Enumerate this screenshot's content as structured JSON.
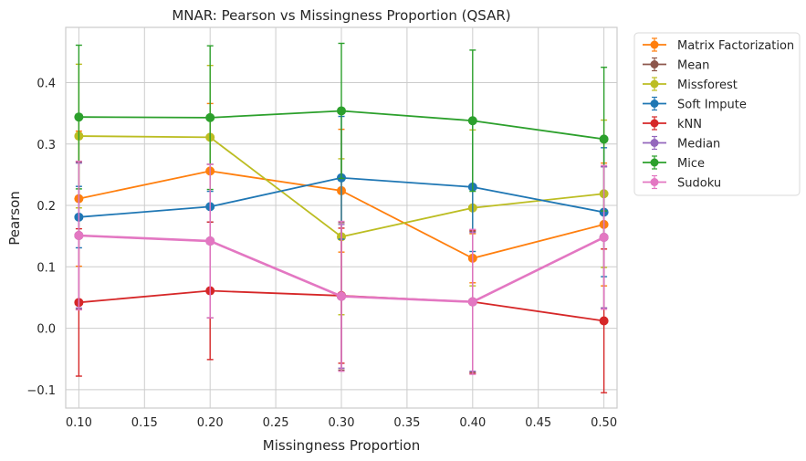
{
  "chart_data": {
    "type": "line",
    "title": "MNAR: Pearson vs Missingness Proportion (QSAR)",
    "xlabel": "Missingness Proportion",
    "ylabel": "Pearson",
    "xlim": [
      0.09,
      0.51
    ],
    "ylim": [
      -0.13,
      0.49
    ],
    "x": [
      0.1,
      0.2,
      0.3,
      0.4,
      0.5
    ],
    "xticks": [
      0.1,
      0.15,
      0.2,
      0.25,
      0.3,
      0.35,
      0.4,
      0.45,
      0.5
    ],
    "xtick_labels": [
      "0.10",
      "0.15",
      "0.20",
      "0.25",
      "0.30",
      "0.35",
      "0.40",
      "0.45",
      "0.50"
    ],
    "yticks": [
      -0.1,
      0.0,
      0.1,
      0.2,
      0.3,
      0.4
    ],
    "ytick_labels": [
      "−0.1",
      "0.0",
      "0.1",
      "0.2",
      "0.3",
      "0.4"
    ],
    "grid": true,
    "legend_position": "outside-top-right",
    "series": [
      {
        "name": "Matrix Factorization",
        "color": "#ff7f0e",
        "values": [
          0.211,
          0.256,
          0.224,
          0.114,
          0.169
        ],
        "err": [
          0.11,
          0.11,
          0.1,
          0.04,
          0.1
        ]
      },
      {
        "name": "Mean",
        "color": "#8c564b",
        "values": [
          0.151,
          0.142,
          0.052,
          0.043,
          0.148
        ],
        "err": [
          0.12,
          0.125,
          0.12,
          0.115,
          0.115
        ]
      },
      {
        "name": "Missforest",
        "color": "#bcbd22",
        "values": [
          0.313,
          0.311,
          0.149,
          0.196,
          0.219
        ],
        "err": [
          0.117,
          0.117,
          0.127,
          0.127,
          0.12
        ]
      },
      {
        "name": "Soft Impute",
        "color": "#1f77b4",
        "values": [
          0.181,
          0.198,
          0.245,
          0.23,
          0.189
        ],
        "err": [
          0.05,
          0.025,
          0.1,
          0.105,
          0.105
        ]
      },
      {
        "name": "kNN",
        "color": "#d62728",
        "values": [
          0.042,
          0.061,
          0.053,
          0.043,
          0.012
        ],
        "err": [
          0.12,
          0.112,
          0.11,
          0.117,
          0.117
        ]
      },
      {
        "name": "Median",
        "color": "#9467bd",
        "values": [
          0.151,
          0.142,
          0.052,
          0.043,
          0.148
        ],
        "err": [
          0.118,
          0.125,
          0.117,
          0.113,
          0.115
        ]
      },
      {
        "name": "Mice",
        "color": "#2ca02c",
        "values": [
          0.344,
          0.343,
          0.354,
          0.338,
          0.308
        ],
        "err": [
          0.117,
          0.117,
          0.11,
          0.115,
          0.117
        ]
      },
      {
        "name": "Sudoku",
        "color": "#e377c2",
        "values": [
          0.151,
          0.142,
          0.052,
          0.043,
          0.148
        ],
        "err": [
          0.121,
          0.125,
          0.122,
          0.118,
          0.117
        ]
      }
    ]
  }
}
